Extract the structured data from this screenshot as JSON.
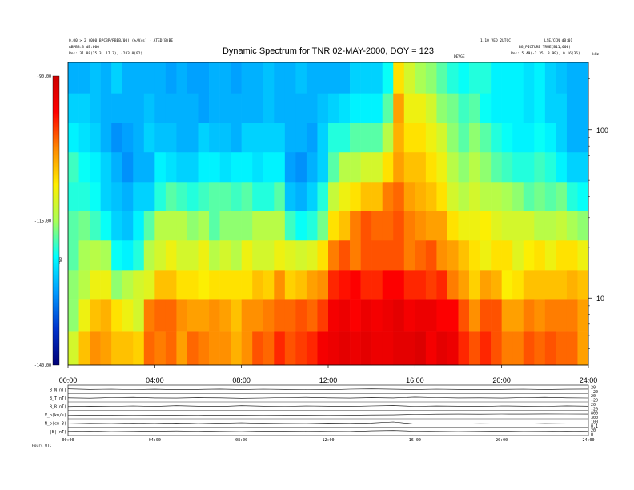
{
  "header": {
    "title": "Dynamic Spectrum for TNR 02-MAY-2000, DOY = 123",
    "left_line1": "0.00 > 2 (000 BPCBP/RBEB/00) (%/V/s) - ATED(B)BE",
    "left_line2": "ABPBB:3 dB:000",
    "left_line3": "Pos:  31.88(25.3, 17.7), -283.0(92)",
    "right_line1": "1.10 VED 2LTCC",
    "right_line2": "LSE/CCN dB:01",
    "right_line3": "BG_PICTURE TRUE(B11,000)",
    "right_line4": "Pos:  5.49(-2.35, 3.99), 0.16(36)",
    "sub_label": "DEVGE",
    "freq_unit": "kHz",
    "footer_left": "Hours  UTC"
  },
  "colorbar": {
    "ticks": [
      "-90.00",
      "-115.00",
      "-140.00"
    ],
    "side_label": "TNR",
    "stops": [
      "#cc0000",
      "#ff0000",
      "#ff8800",
      "#ffee00",
      "#aaff55",
      "#00ffff",
      "#0099ff",
      "#0033cc",
      "#000077"
    ]
  },
  "chart_data": {
    "type": "heatmap",
    "title": "Dynamic Spectrum for TNR 02-MAY-2000, DOY = 123",
    "xlabel": "",
    "ylabel": "kHz",
    "x_ticks": [
      "00:00",
      "04:00",
      "08:00",
      "12:00",
      "16:00",
      "20:00",
      "24:00"
    ],
    "x_range_hours": [
      0,
      24
    ],
    "y_scale": "log",
    "y_ticks": [
      {
        "value": 10,
        "label": "10"
      },
      {
        "value": 100,
        "label": "100"
      }
    ],
    "y_range_khz": [
      4,
      250
    ],
    "color_range_db": [
      -140,
      -90
    ],
    "color_ticks": [
      -90,
      -115,
      -140
    ],
    "hours": [
      0,
      0.5,
      1,
      1.5,
      2,
      2.5,
      3,
      3.5,
      4,
      4.5,
      5,
      5.5,
      6,
      6.5,
      7,
      7.5,
      8,
      8.5,
      9,
      9.5,
      10,
      10.5,
      11,
      11.5,
      12,
      12.5,
      13,
      13.5,
      14,
      14.5,
      15,
      15.5,
      16,
      16.5,
      17,
      17.5,
      18,
      18.5,
      19,
      19.5,
      20,
      20.5,
      21,
      21.5,
      22,
      22.5,
      23,
      23.5
    ],
    "freq_khz": [
      5,
      8,
      12,
      18,
      27,
      40,
      60,
      90,
      135,
      200
    ],
    "intensity_db": [
      [
        -112,
        -106,
        -103,
        -104,
        -106,
        -106,
        -107,
        -101,
        -102,
        -101,
        -104,
        -101,
        -102,
        -103,
        -103,
        -105,
        -103,
        -100,
        -101,
        -98,
        -100,
        -99,
        -98,
        -95,
        -94,
        -93,
        -94,
        -93,
        -94,
        -94,
        -93,
        -93,
        -92,
        -95,
        -93,
        -94,
        -98,
        -100,
        -98,
        -100,
        -102,
        -102,
        -100,
        -101,
        -100,
        -101,
        -101,
        -104
      ],
      [
        -116,
        -110,
        -106,
        -105,
        -108,
        -110,
        -112,
        -102,
        -101,
        -101,
        -103,
        -104,
        -104,
        -103,
        -104,
        -106,
        -103,
        -103,
        -102,
        -101,
        -101,
        -100,
        -101,
        -99,
        -95,
        -94,
        -96,
        -94,
        -95,
        -94,
        -93,
        -95,
        -94,
        -94,
        -96,
        -96,
        -100,
        -103,
        -100,
        -100,
        -104,
        -104,
        -102,
        -103,
        -102,
        -102,
        -102,
        -104
      ],
      [
        -116,
        -114,
        -110,
        -110,
        -116,
        -114,
        -112,
        -111,
        -106,
        -106,
        -108,
        -108,
        -109,
        -108,
        -108,
        -108,
        -108,
        -106,
        -107,
        -103,
        -107,
        -106,
        -104,
        -103,
        -98,
        -97,
        -96,
        -98,
        -98,
        -96,
        -96,
        -98,
        -98,
        -99,
        -98,
        -102,
        -104,
        -107,
        -104,
        -105,
        -109,
        -108,
        -106,
        -106,
        -106,
        -106,
        -105,
        -106
      ],
      [
        -118,
        -115,
        -114,
        -115,
        -121,
        -122,
        -120,
        -114,
        -112,
        -110,
        -112,
        -112,
        -110,
        -114,
        -112,
        -114,
        -110,
        -112,
        -112,
        -110,
        -111,
        -112,
        -111,
        -108,
        -102,
        -100,
        -102,
        -100,
        -100,
        -100,
        -100,
        -102,
        -101,
        -100,
        -103,
        -104,
        -106,
        -108,
        -110,
        -108,
        -108,
        -111,
        -109,
        -108,
        -110,
        -108,
        -108,
        -110
      ],
      [
        -118,
        -117,
        -119,
        -121,
        -124,
        -125,
        -122,
        -118,
        -114,
        -114,
        -114,
        -116,
        -115,
        -118,
        -116,
        -116,
        -116,
        -114,
        -114,
        -114,
        -119,
        -121,
        -120,
        -117,
        -108,
        -106,
        -102,
        -100,
        -101,
        -101,
        -100,
        -102,
        -103,
        -104,
        -104,
        -108,
        -110,
        -110,
        -109,
        -111,
        -112,
        -112,
        -112,
        -114,
        -114,
        -113,
        -115,
        -116
      ],
      [
        -120,
        -120,
        -121,
        -124,
        -125,
        -126,
        -124,
        -124,
        -120,
        -118,
        -119,
        -120,
        -119,
        -118,
        -118,
        -119,
        -118,
        -120,
        -120,
        -118,
        -125,
        -126,
        -124,
        -120,
        -113,
        -110,
        -108,
        -106,
        -106,
        -102,
        -101,
        -104,
        -105,
        -106,
        -108,
        -112,
        -114,
        -112,
        -114,
        -114,
        -115,
        -116,
        -118,
        -117,
        -118,
        -117,
        -120,
        -121
      ],
      [
        -119,
        -121,
        -122,
        -124,
        -126,
        -128,
        -126,
        -126,
        -122,
        -123,
        -124,
        -124,
        -122,
        -122,
        -123,
        -122,
        -122,
        -123,
        -122,
        -122,
        -127,
        -128,
        -126,
        -124,
        -118,
        -114,
        -114,
        -112,
        -112,
        -108,
        -104,
        -106,
        -106,
        -108,
        -110,
        -114,
        -116,
        -114,
        -116,
        -118,
        -119,
        -120,
        -120,
        -119,
        -120,
        -122,
        -124,
        -124
      ],
      [
        -122,
        -123,
        -124,
        -126,
        -128,
        -127,
        -126,
        -124,
        -125,
        -125,
        -126,
        -126,
        -124,
        -125,
        -125,
        -126,
        -124,
        -124,
        -124,
        -124,
        -126,
        -126,
        -127,
        -124,
        -120,
        -120,
        -118,
        -118,
        -118,
        -114,
        -105,
        -108,
        -108,
        -110,
        -112,
        -116,
        -118,
        -116,
        -118,
        -120,
        -121,
        -122,
        -122,
        -121,
        -122,
        -124,
        -126,
        -126
      ],
      [
        -124,
        -124,
        -125,
        -126,
        -126,
        -126,
        -126,
        -125,
        -126,
        -126,
        -126,
        -126,
        -127,
        -126,
        -126,
        -126,
        -126,
        -126,
        -125,
        -126,
        -126,
        -126,
        -126,
        -125,
        -124,
        -123,
        -122,
        -122,
        -122,
        -118,
        -104,
        -110,
        -110,
        -112,
        -116,
        -117,
        -119,
        -118,
        -121,
        -122,
        -122,
        -122,
        -123,
        -122,
        -124,
        -124,
        -126,
        -126
      ],
      [
        -126,
        -126,
        -125,
        -126,
        -124,
        -126,
        -126,
        -126,
        -126,
        -127,
        -126,
        -127,
        -127,
        -126,
        -126,
        -127,
        -126,
        -126,
        -125,
        -126,
        -126,
        -125,
        -126,
        -126,
        -126,
        -126,
        -124,
        -124,
        -124,
        -121,
        -108,
        -112,
        -115,
        -116,
        -118,
        -120,
        -121,
        -120,
        -120,
        -122,
        -122,
        -122,
        -123,
        -122,
        -124,
        -125,
        -126,
        -126
      ]
    ]
  },
  "bottom_panel": {
    "row_labels": [
      "B_N(nT)",
      "B_T(nT)",
      "B_R(nT)",
      "V_p(km/s)",
      "N_p(cm-3)",
      "|B|(nT)"
    ],
    "right_ticks": [
      "20",
      "-20",
      "20",
      "-20",
      "20",
      "-20",
      "800",
      "300",
      "100",
      "0.1",
      "20",
      "0"
    ],
    "x_ticks": [
      "00:00",
      "04:00",
      "08:00",
      "12:00",
      "16:00",
      "20:00",
      "24:00"
    ],
    "series": [
      {
        "name": "B_N(nT)",
        "values": [
          0.55,
          0.5,
          0.52,
          0.48,
          0.51,
          0.47,
          0.5,
          0.53,
          0.49,
          0.52,
          0.5,
          0.48,
          0.46,
          0.52,
          0.55,
          0.51,
          0.49,
          0.52,
          0.5,
          0.47,
          0.5,
          0.52,
          0.49,
          0.51,
          0.53
        ]
      },
      {
        "name": "B_T(nT)",
        "values": [
          0.5,
          0.46,
          0.52,
          0.55,
          0.49,
          0.47,
          0.51,
          0.5,
          0.45,
          0.48,
          0.52,
          0.55,
          0.5,
          0.47,
          0.51,
          0.49,
          0.58,
          0.52,
          0.49,
          0.5,
          0.47,
          0.52,
          0.55,
          0.5,
          0.48
        ]
      },
      {
        "name": "B_R(nT)",
        "values": [
          0.45,
          0.5,
          0.48,
          0.52,
          0.47,
          0.55,
          0.5,
          0.46,
          0.55,
          0.5,
          0.48,
          0.52,
          0.5,
          0.47,
          0.52,
          0.56,
          0.48,
          0.51,
          0.5,
          0.46,
          0.52,
          0.5,
          0.48,
          0.53,
          0.5
        ]
      },
      {
        "name": "V_p(km/s)",
        "values": [
          0.4,
          0.42,
          0.41,
          0.43,
          0.42,
          0.44,
          0.43,
          0.42,
          0.44,
          0.43,
          0.45,
          0.44,
          0.43,
          0.44,
          0.46,
          0.47,
          0.52,
          0.55,
          0.56,
          0.55,
          0.57,
          0.56,
          0.58,
          0.57,
          0.56
        ]
      },
      {
        "name": "N_p(cm-3)",
        "values": [
          0.4,
          0.45,
          0.42,
          0.48,
          0.44,
          0.5,
          0.43,
          0.47,
          0.52,
          0.46,
          0.44,
          0.42,
          0.47,
          0.45,
          0.5,
          0.62,
          0.38,
          0.4,
          0.37,
          0.41,
          0.39,
          0.38,
          0.42,
          0.4,
          0.39
        ]
      },
      {
        "name": "|B|(nT)",
        "values": [
          0.5,
          0.52,
          0.48,
          0.5,
          0.53,
          0.55,
          0.52,
          0.5,
          0.48,
          0.51,
          0.54,
          0.52,
          0.5,
          0.49,
          0.56,
          0.6,
          0.52,
          0.5,
          0.48,
          0.5,
          0.51,
          0.49,
          0.5,
          0.52,
          0.5
        ]
      }
    ]
  }
}
